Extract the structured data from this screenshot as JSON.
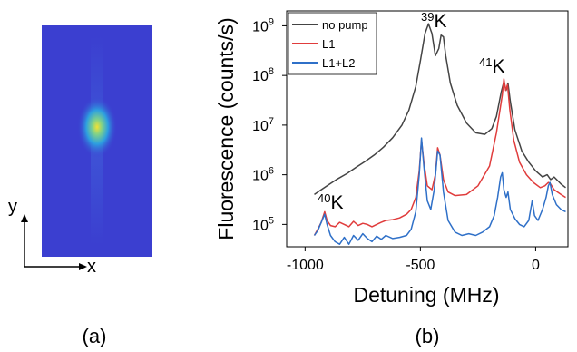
{
  "panel_a": {
    "caption": "(a)",
    "x_label": "x",
    "y_label": "y",
    "colors": {
      "background": "#3b3fd0",
      "glow": "#2d9fe0",
      "core": "#f2e233"
    }
  },
  "panel_b": {
    "caption": "(b)",
    "annotations": [
      {
        "prefix": "39",
        "label": "K"
      },
      {
        "prefix": "41",
        "label": "K"
      },
      {
        "prefix": "40",
        "label": "K"
      }
    ]
  },
  "chart_data": {
    "type": "line",
    "title": "",
    "xlabel": "Detuning (MHz)",
    "ylabel": "Fluorescence (counts/s)",
    "xlim": [
      -1080,
      140
    ],
    "ylim_log10": [
      4.55,
      9.3
    ],
    "y_scale": "log",
    "x_ticks": [
      -1000,
      -500,
      0
    ],
    "x_tick_labels": [
      "-1000",
      "-500",
      "0"
    ],
    "y_ticks": [
      5,
      6,
      7,
      8,
      9
    ],
    "y_tick_base": "10",
    "grid": false,
    "legend_position": "top-left",
    "series": [
      {
        "name": "no pump",
        "color": "#444444",
        "points": [
          [
            -960,
            400000
          ],
          [
            -930,
            500000
          ],
          [
            -900,
            620000
          ],
          [
            -860,
            820000
          ],
          [
            -820,
            1050000
          ],
          [
            -780,
            1400000
          ],
          [
            -740,
            1850000
          ],
          [
            -700,
            2500000
          ],
          [
            -660,
            3600000
          ],
          [
            -620,
            5600000
          ],
          [
            -580,
            10000000
          ],
          [
            -550,
            20000000
          ],
          [
            -520,
            60000000
          ],
          [
            -500,
            200000000
          ],
          [
            -480,
            700000000
          ],
          [
            -465,
            1100000000
          ],
          [
            -450,
            700000000
          ],
          [
            -435,
            250000000
          ],
          [
            -420,
            350000000
          ],
          [
            -410,
            650000000
          ],
          [
            -400,
            600000000
          ],
          [
            -390,
            250000000
          ],
          [
            -370,
            70000000
          ],
          [
            -340,
            25000000
          ],
          [
            -300,
            11000000
          ],
          [
            -260,
            7000000
          ],
          [
            -220,
            6500000
          ],
          [
            -190,
            8500000
          ],
          [
            -170,
            15000000
          ],
          [
            -150,
            45000000
          ],
          [
            -138,
            75000000
          ],
          [
            -128,
            50000000
          ],
          [
            -120,
            70000000
          ],
          [
            -110,
            30000000
          ],
          [
            -90,
            8000000
          ],
          [
            -60,
            3000000
          ],
          [
            -30,
            1800000
          ],
          [
            0,
            1200000
          ],
          [
            30,
            900000
          ],
          [
            50,
            1000000
          ],
          [
            65,
            800000
          ],
          [
            80,
            900000
          ],
          [
            110,
            650000
          ],
          [
            130,
            550000
          ]
        ]
      },
      {
        "name": "L1",
        "color": "#e03c3c",
        "points": [
          [
            -960,
            60000
          ],
          [
            -945,
            80000
          ],
          [
            -930,
            110000
          ],
          [
            -915,
            180000
          ],
          [
            -905,
            120000
          ],
          [
            -890,
            95000
          ],
          [
            -870,
            90000
          ],
          [
            -850,
            110000
          ],
          [
            -830,
            100000
          ],
          [
            -810,
            90000
          ],
          [
            -790,
            115000
          ],
          [
            -770,
            95000
          ],
          [
            -750,
            105000
          ],
          [
            -730,
            100000
          ],
          [
            -710,
            90000
          ],
          [
            -690,
            100000
          ],
          [
            -670,
            110000
          ],
          [
            -650,
            120000
          ],
          [
            -620,
            125000
          ],
          [
            -590,
            135000
          ],
          [
            -560,
            160000
          ],
          [
            -540,
            200000
          ],
          [
            -520,
            350000
          ],
          [
            -505,
            1200000
          ],
          [
            -495,
            5000000
          ],
          [
            -485,
            1800000
          ],
          [
            -470,
            600000
          ],
          [
            -450,
            500000
          ],
          [
            -435,
            1000000
          ],
          [
            -425,
            3500000
          ],
          [
            -415,
            2500000
          ],
          [
            -400,
            800000
          ],
          [
            -380,
            450000
          ],
          [
            -350,
            380000
          ],
          [
            -300,
            400000
          ],
          [
            -250,
            600000
          ],
          [
            -200,
            1500000
          ],
          [
            -170,
            7000000
          ],
          [
            -145,
            40000000
          ],
          [
            -138,
            85000000
          ],
          [
            -130,
            50000000
          ],
          [
            -122,
            65000000
          ],
          [
            -112,
            20000000
          ],
          [
            -95,
            5000000
          ],
          [
            -70,
            1800000
          ],
          [
            -40,
            1000000
          ],
          [
            -10,
            700000
          ],
          [
            20,
            550000
          ],
          [
            40,
            600000
          ],
          [
            55,
            700000
          ],
          [
            65,
            650000
          ],
          [
            80,
            500000
          ],
          [
            110,
            400000
          ],
          [
            130,
            350000
          ]
        ]
      },
      {
        "name": "L1+L2",
        "color": "#2f70c8",
        "points": [
          [
            -960,
            60000
          ],
          [
            -945,
            75000
          ],
          [
            -930,
            110000
          ],
          [
            -915,
            160000
          ],
          [
            -905,
            100000
          ],
          [
            -890,
            60000
          ],
          [
            -870,
            45000
          ],
          [
            -850,
            40000
          ],
          [
            -830,
            55000
          ],
          [
            -810,
            40000
          ],
          [
            -790,
            60000
          ],
          [
            -770,
            48000
          ],
          [
            -750,
            65000
          ],
          [
            -730,
            52000
          ],
          [
            -710,
            45000
          ],
          [
            -690,
            58000
          ],
          [
            -670,
            50000
          ],
          [
            -650,
            60000
          ],
          [
            -620,
            52000
          ],
          [
            -590,
            55000
          ],
          [
            -560,
            60000
          ],
          [
            -540,
            80000
          ],
          [
            -520,
            180000
          ],
          [
            -505,
            1000000
          ],
          [
            -495,
            5500000
          ],
          [
            -485,
            1500000
          ],
          [
            -470,
            300000
          ],
          [
            -455,
            200000
          ],
          [
            -440,
            500000
          ],
          [
            -425,
            3000000
          ],
          [
            -415,
            2500000
          ],
          [
            -400,
            450000
          ],
          [
            -380,
            120000
          ],
          [
            -350,
            70000
          ],
          [
            -320,
            60000
          ],
          [
            -290,
            65000
          ],
          [
            -260,
            60000
          ],
          [
            -230,
            70000
          ],
          [
            -200,
            90000
          ],
          [
            -180,
            150000
          ],
          [
            -165,
            350000
          ],
          [
            -152,
            900000
          ],
          [
            -145,
            1100000
          ],
          [
            -138,
            500000
          ],
          [
            -128,
            350000
          ],
          [
            -120,
            450000
          ],
          [
            -110,
            200000
          ],
          [
            -90,
            130000
          ],
          [
            -70,
            100000
          ],
          [
            -50,
            90000
          ],
          [
            -30,
            120000
          ],
          [
            -15,
            300000
          ],
          [
            -5,
            150000
          ],
          [
            10,
            120000
          ],
          [
            30,
            200000
          ],
          [
            45,
            350000
          ],
          [
            55,
            600000
          ],
          [
            62,
            700000
          ],
          [
            72,
            400000
          ],
          [
            90,
            250000
          ],
          [
            110,
            200000
          ],
          [
            130,
            180000
          ]
        ]
      }
    ]
  }
}
